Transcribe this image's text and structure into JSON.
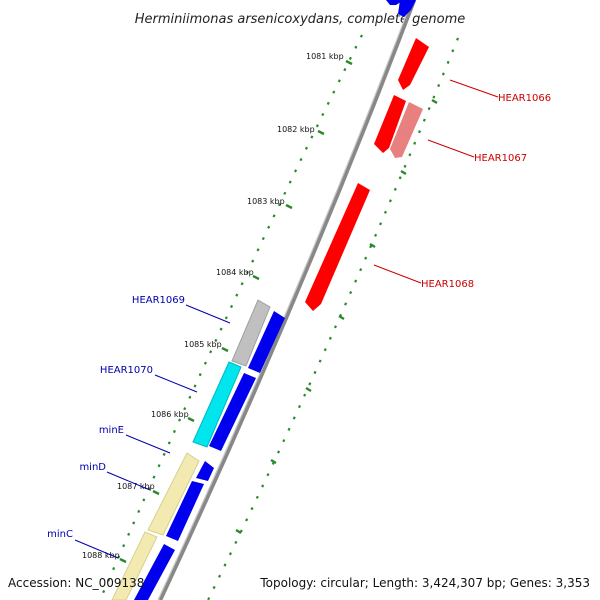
{
  "title": "Herminiimonas arsenicoxydans, complete genome",
  "footer": {
    "accession": "Accession: NC_009138",
    "topology": "Topology: circular; Length: 3,424,307 bp; Genes: 3,353"
  },
  "ticks": [
    "1081 kbp",
    "1082 kbp",
    "1083 kbp",
    "1084 kbp",
    "1085 kbp",
    "1086 kbp",
    "1087 kbp",
    "1088 kbp"
  ],
  "genes": {
    "HEAR1066": "HEAR1066",
    "HEAR1067": "HEAR1067",
    "HEAR1068": "HEAR1068",
    "HEAR1069": "HEAR1069",
    "HEAR1070": "HEAR1070",
    "minE": "minE",
    "minD": "minD",
    "minC": "minC"
  },
  "colors": {
    "forward": "#ff0000",
    "forward_light": "#e88080",
    "reverse": "#0000ee",
    "gray": "#c0c0c0",
    "cyan": "#00e5ee",
    "yellow": "#f2eab0",
    "backbone": "#888888",
    "tick": "#2a8a2a",
    "red_label": "#cc0000",
    "blue_label": "#0000aa"
  }
}
